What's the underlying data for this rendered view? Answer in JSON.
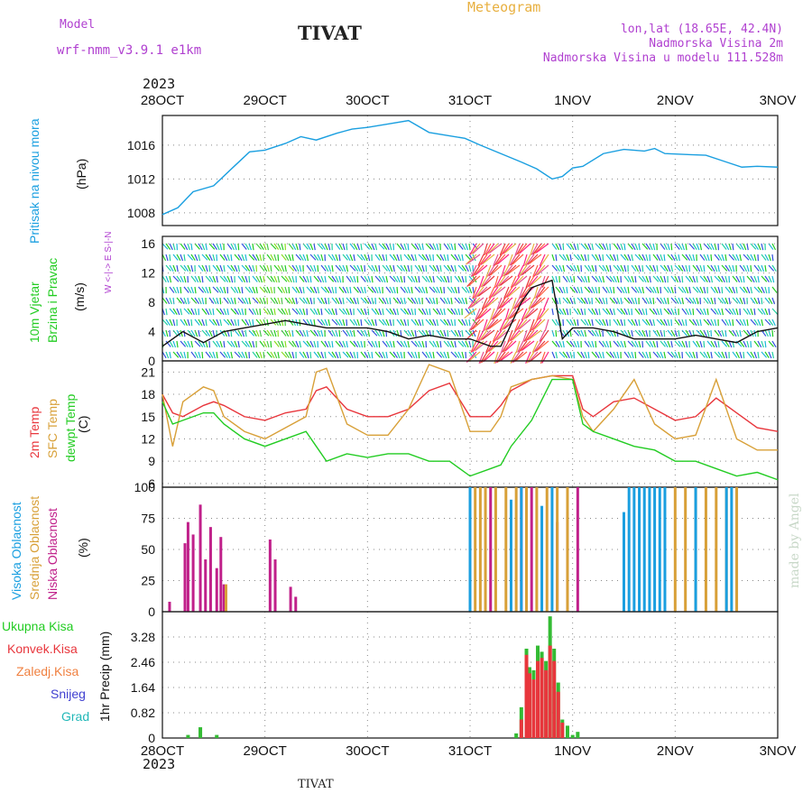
{
  "header": {
    "meteogram": "Meteogram",
    "model_label": "Model",
    "model_name": "wrf-nmm_v3.9.1 e1km",
    "station": "TIVAT",
    "lonlat": "lon,lat (18.65E, 42.4N)",
    "altitude": "Nadmorska Visina 2m",
    "model_altitude": "Nadmorska Visina u modelu 111.528m"
  },
  "time_axis": {
    "year": "2023",
    "labels": [
      "28OCT",
      "29OCT",
      "30OCT",
      "31OCT",
      "1NOV",
      "2NOV",
      "3NOV"
    ],
    "bottom_station": "TIVAT"
  },
  "watermark": "made by Angel",
  "colors": {
    "pressure": "#1a9fe0",
    "temp2m": "#e8363c",
    "sfc": "#d8a038",
    "dewpt": "#22cc22",
    "high_cloud": "#1a9fe0",
    "mid_cloud": "#d8a038",
    "low_cloud": "#c0208a",
    "total_precip": "#33bb33",
    "conv_precip": "#e8363c",
    "snow": "#4040d0",
    "grad": "#22b8b8",
    "compass": "#b040d0"
  },
  "panels": {
    "pressure": {
      "label1": "Pritisak na nivou mora",
      "unit": "(hPa)"
    },
    "wind": {
      "label1": "10m Vjetar",
      "label2": "Brzina i Pravac",
      "unit": "(m/s)",
      "compass": "W <-|-> E  S-|-N"
    },
    "temp": {
      "label1": "2m Temp",
      "label2": "SFC Temp",
      "label3": "dewpt Temp",
      "unit": "(C)"
    },
    "cloud": {
      "label1": "Visoka Oblacnost",
      "label2": "Srednja Oblacnost",
      "label3": "Niska Oblacnost",
      "unit": "(%)"
    },
    "precip": {
      "label1": "Ukupna Kisa",
      "label2": "Konvek.Kisa",
      "label3": "Zaledj.Kisa",
      "label4": "Snijeg",
      "label5": "Grad",
      "unit": "1hr Precip (mm)"
    }
  },
  "chart_data": [
    {
      "type": "line",
      "name": "pressure",
      "ylabel": "(hPa)",
      "ylim": [
        1006.5,
        1019.5
      ],
      "yticks": [
        1008,
        1012,
        1016
      ],
      "xlim": [
        0,
        6
      ],
      "grid": true,
      "series": [
        {
          "name": "Pritisak na nivou mora",
          "x": [
            0,
            0.15,
            0.3,
            0.5,
            0.7,
            0.85,
            1.0,
            1.2,
            1.35,
            1.5,
            1.7,
            1.85,
            2.0,
            2.2,
            2.4,
            2.6,
            2.8,
            2.95,
            3.1,
            3.3,
            3.5,
            3.65,
            3.8,
            3.9,
            4.0,
            4.1,
            4.3,
            4.5,
            4.7,
            4.8,
            4.9,
            5.1,
            5.3,
            5.5,
            5.65,
            5.8,
            6.0
          ],
          "y": [
            1007.8,
            1008.6,
            1010.5,
            1011.2,
            1013.5,
            1015.2,
            1015.4,
            1016.2,
            1017.0,
            1016.6,
            1017.4,
            1017.9,
            1018.1,
            1018.5,
            1018.9,
            1017.5,
            1017.1,
            1016.8,
            1016.0,
            1015.0,
            1014.0,
            1013.2,
            1012.0,
            1012.3,
            1013.3,
            1013.5,
            1015.0,
            1015.5,
            1015.3,
            1015.6,
            1015.0,
            1014.9,
            1014.8,
            1014.0,
            1013.4,
            1013.5,
            1013.4
          ]
        }
      ]
    },
    {
      "type": "line",
      "name": "wind",
      "ylabel": "(m/s)",
      "ylim": [
        0,
        17
      ],
      "yticks": [
        0,
        4,
        8,
        12,
        16
      ],
      "xlim": [
        0,
        6
      ],
      "grid": true,
      "series": [
        {
          "name": "Brzina",
          "x": [
            0,
            0.2,
            0.4,
            0.6,
            0.8,
            1.0,
            1.2,
            1.4,
            1.6,
            1.8,
            2.0,
            2.2,
            2.4,
            2.6,
            2.8,
            3.0,
            3.2,
            3.3,
            3.4,
            3.5,
            3.6,
            3.7,
            3.8,
            3.9,
            4.0,
            4.2,
            4.4,
            4.6,
            4.8,
            5.0,
            5.2,
            5.4,
            5.6,
            5.8,
            6.0
          ],
          "y": [
            2,
            4,
            2.5,
            4,
            4.5,
            5,
            5.5,
            5,
            4.5,
            4.5,
            4.5,
            4,
            3,
            3.5,
            3,
            3,
            2,
            2,
            5,
            8,
            10,
            10.5,
            11,
            3,
            4.5,
            4.5,
            4,
            3,
            3,
            3,
            3.5,
            3,
            2.5,
            4,
            4.5
          ]
        }
      ]
    },
    {
      "type": "line",
      "name": "temperature",
      "ylabel": "(C)",
      "ylim": [
        5.5,
        22.5
      ],
      "yticks": [
        6,
        9,
        12,
        15,
        18,
        21
      ],
      "xlim": [
        0,
        6
      ],
      "grid": true,
      "series": [
        {
          "name": "2m Temp",
          "x": [
            0,
            0.1,
            0.2,
            0.4,
            0.5,
            0.6,
            0.8,
            1.0,
            1.2,
            1.4,
            1.5,
            1.6,
            1.8,
            2.0,
            2.2,
            2.4,
            2.6,
            2.8,
            3.0,
            3.2,
            3.3,
            3.4,
            3.6,
            3.8,
            4.0,
            4.1,
            4.2,
            4.4,
            4.6,
            4.8,
            5.0,
            5.2,
            5.4,
            5.6,
            5.8,
            6.0
          ],
          "y": [
            18,
            15.5,
            15,
            16.5,
            17,
            16.5,
            15,
            14.5,
            15.5,
            16,
            18.5,
            19,
            16,
            15,
            15,
            16,
            18.5,
            19.5,
            15,
            15,
            16.5,
            18.5,
            20,
            20.5,
            20.5,
            16,
            15,
            17,
            17.5,
            16,
            14.5,
            15,
            17.5,
            15.5,
            13.5,
            13
          ]
        },
        {
          "name": "SFC Temp",
          "x": [
            0,
            0.1,
            0.2,
            0.4,
            0.5,
            0.6,
            0.8,
            1.0,
            1.2,
            1.4,
            1.5,
            1.6,
            1.8,
            2.0,
            2.2,
            2.4,
            2.6,
            2.8,
            3.0,
            3.2,
            3.3,
            3.4,
            3.6,
            3.8,
            4.0,
            4.1,
            4.2,
            4.4,
            4.6,
            4.8,
            5.0,
            5.2,
            5.4,
            5.6,
            5.8,
            6.0
          ],
          "y": [
            18,
            11,
            17,
            19,
            18.5,
            15,
            13,
            12,
            13.5,
            15,
            21,
            21.5,
            14,
            12.5,
            12.5,
            16,
            22,
            21,
            13,
            13,
            15,
            19,
            20,
            20.5,
            20,
            15,
            13,
            16,
            20,
            14,
            12,
            12.5,
            20,
            12,
            10.5,
            10.5
          ]
        },
        {
          "name": "dewpt Temp",
          "x": [
            0,
            0.1,
            0.2,
            0.4,
            0.5,
            0.6,
            0.8,
            1.0,
            1.2,
            1.4,
            1.5,
            1.6,
            1.8,
            2.0,
            2.2,
            2.4,
            2.6,
            2.8,
            3.0,
            3.2,
            3.3,
            3.4,
            3.6,
            3.8,
            4.0,
            4.1,
            4.2,
            4.4,
            4.6,
            4.8,
            5.0,
            5.2,
            5.4,
            5.6,
            5.8,
            6.0
          ],
          "y": [
            17,
            14,
            14.5,
            15.5,
            15.5,
            14,
            12,
            11,
            12,
            13,
            11,
            9,
            10,
            9.5,
            10,
            10,
            9,
            9,
            7,
            8,
            8.5,
            11,
            14.5,
            20,
            20,
            14,
            13,
            12,
            11,
            10.5,
            9,
            9,
            8,
            7,
            7.5,
            6.5
          ]
        }
      ]
    },
    {
      "type": "bar",
      "name": "cloud",
      "ylabel": "(%)",
      "ylim": [
        0,
        100
      ],
      "yticks": [
        0,
        25,
        50,
        75,
        100
      ],
      "xlim": [
        0,
        6
      ],
      "grid": true,
      "series": [
        {
          "name": "Niska Oblacnost",
          "x": [
            0.07,
            0.22,
            0.25,
            0.3,
            0.37,
            0.42,
            0.47,
            0.53,
            0.57,
            0.6,
            1.05,
            1.1,
            1.25,
            1.3,
            3.2,
            3.5,
            3.6,
            3.85,
            3.95,
            4.05
          ],
          "y": [
            8,
            55,
            72,
            62,
            86,
            42,
            68,
            35,
            60,
            22,
            58,
            42,
            20,
            12,
            100,
            100,
            100,
            72,
            80,
            100
          ]
        },
        {
          "name": "Srednja Oblacnost",
          "x": [
            0.62,
            3.05,
            3.1,
            3.15,
            3.25,
            3.35,
            3.45,
            3.55,
            3.65,
            3.75,
            3.85,
            3.95,
            5.0,
            5.1,
            5.2,
            5.3,
            5.4,
            5.5,
            5.6
          ],
          "y": [
            22,
            100,
            100,
            100,
            100,
            100,
            100,
            100,
            100,
            100,
            100,
            100,
            100,
            100,
            100,
            100,
            100,
            100,
            100
          ]
        },
        {
          "name": "Visoka Oblacnost",
          "x": [
            3.0,
            3.4,
            3.5,
            3.7,
            3.8,
            4.5,
            4.55,
            4.6,
            4.65,
            4.7,
            4.75,
            4.8,
            4.85,
            4.9,
            5.2,
            5.5,
            5.55
          ],
          "y": [
            100,
            90,
            100,
            85,
            100,
            80,
            100,
            100,
            100,
            100,
            100,
            100,
            100,
            100,
            100,
            100,
            100
          ]
        }
      ]
    },
    {
      "type": "bar",
      "name": "precip",
      "ylabel": "1hr Precip (mm)",
      "ylim": [
        0,
        4.1
      ],
      "yticks": [
        0,
        0.82,
        1.64,
        2.46,
        3.28
      ],
      "xlim": [
        0,
        6
      ],
      "grid": true,
      "series": [
        {
          "name": "Ukupna Kisa",
          "x": [
            0.25,
            0.37,
            0.53,
            3.45,
            3.5,
            3.55,
            3.58,
            3.62,
            3.66,
            3.7,
            3.74,
            3.78,
            3.82,
            3.86,
            3.9,
            3.95,
            4.0,
            4.05
          ],
          "y": [
            0.1,
            0.35,
            0.1,
            0.15,
            1.0,
            2.9,
            2.3,
            2.2,
            3.0,
            2.8,
            2.5,
            3.95,
            2.9,
            1.8,
            0.6,
            0.4,
            0.1,
            0.2
          ]
        },
        {
          "name": "Konvek.Kisa",
          "x": [
            3.5,
            3.55,
            3.58,
            3.62,
            3.66,
            3.7,
            3.74,
            3.78,
            3.82,
            3.86,
            3.9
          ],
          "y": [
            0.6,
            2.7,
            2.1,
            1.9,
            2.5,
            2.6,
            2.2,
            3.0,
            2.5,
            1.5,
            0.5
          ]
        }
      ]
    }
  ]
}
